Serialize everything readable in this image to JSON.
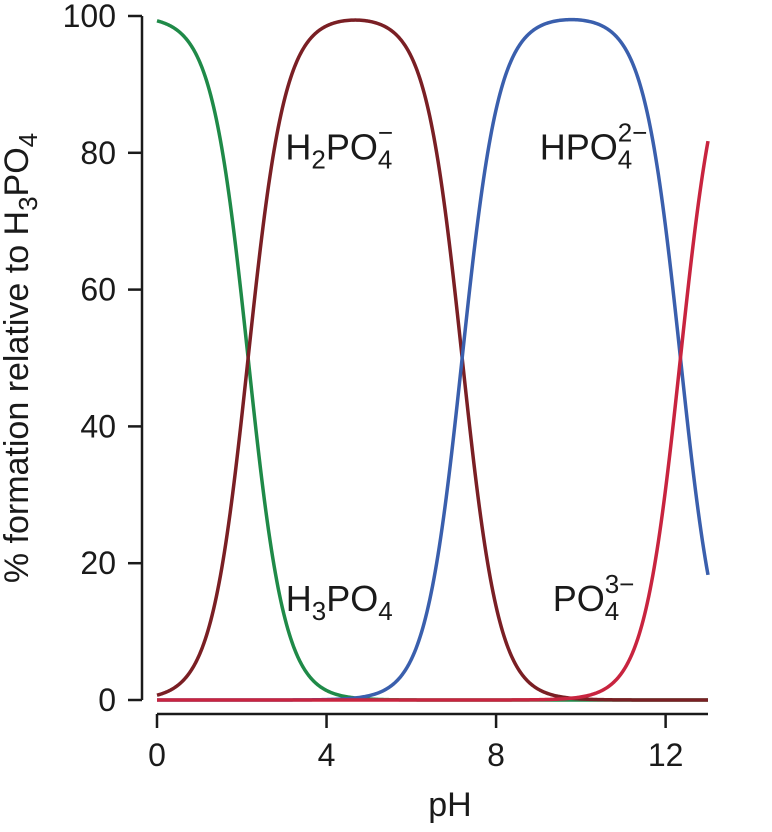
{
  "chart_data": {
    "type": "line",
    "title": "",
    "xlabel": "pH",
    "ylabel": {
      "main": "% formation relative to H",
      "sub": "3",
      "tail": "PO",
      "sub2": "4"
    },
    "xlim": [
      0,
      13
    ],
    "ylim": [
      0,
      100
    ],
    "xticks": [
      "0",
      "4",
      "8",
      "12"
    ],
    "yticks": [
      "0",
      "20",
      "40",
      "60",
      "80",
      "100"
    ],
    "grid": false,
    "legend": "none",
    "pKa": [
      2.15,
      7.2,
      12.35
    ],
    "x_range": [
      0,
      13
    ],
    "series": [
      {
        "color": "#1f8a48",
        "label_text": {
          "a": "H",
          "b": "3",
          "c": "PO",
          "d": "4",
          "sup": ""
        },
        "label_pos": [
          4.3,
          13
        ]
      },
      {
        "color": "#7a1f24",
        "label_text": {
          "a": "H",
          "b": "2",
          "c": "PO",
          "d": "4",
          "sup": "−"
        },
        "label_pos": [
          4.3,
          79
        ]
      },
      {
        "color": "#3a5fad",
        "label_text": {
          "a": "",
          "b": "",
          "c": "HPO",
          "d": "4",
          "sup": "2−"
        },
        "label_pos": [
          10.3,
          79
        ]
      },
      {
        "color": "#c8243f",
        "label_text": {
          "a": "",
          "b": "",
          "c": "PO",
          "d": "4",
          "sup": "3−"
        },
        "label_pos": [
          10.3,
          13
        ]
      }
    ]
  }
}
